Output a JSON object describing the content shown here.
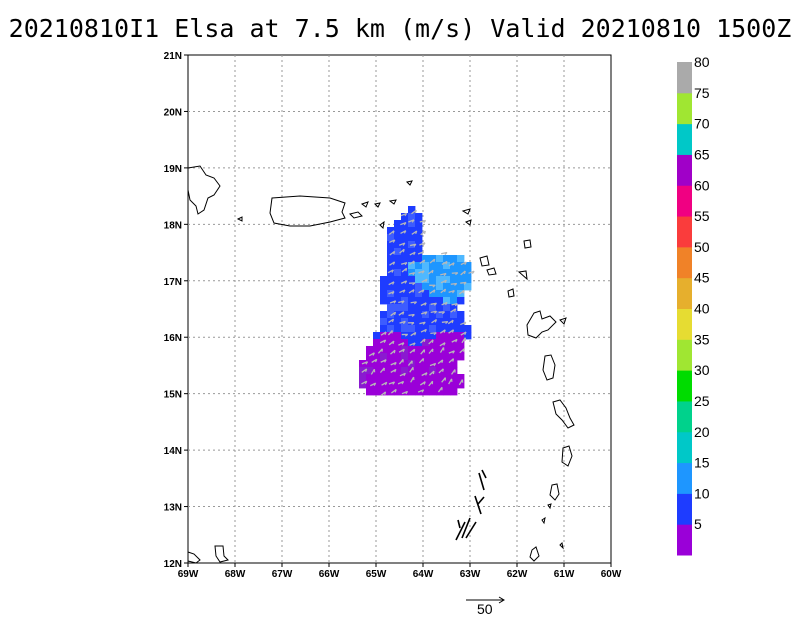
{
  "title": "20210810I1 Elsa at 7.5 km (m/s) Valid 20210810 1500Z",
  "map": {
    "lon_labels": [
      "69W",
      "68W",
      "67W",
      "66W",
      "65W",
      "64W",
      "63W",
      "62W",
      "61W",
      "60W"
    ],
    "lat_labels": [
      "12N",
      "13N",
      "14N",
      "15N",
      "16N",
      "17N",
      "18N",
      "19N",
      "20N",
      "21N"
    ],
    "grid": "dotted"
  },
  "colorbar": {
    "labels": [
      "5",
      "10",
      "15",
      "20",
      "25",
      "30",
      "35",
      "40",
      "45",
      "50",
      "55",
      "60",
      "65",
      "70",
      "75",
      "80"
    ],
    "colors": [
      "#9a00d8",
      "#1e3cff",
      "#1e96ff",
      "#00c8c8",
      "#00d28c",
      "#00dc00",
      "#a0e632",
      "#e6dc32",
      "#e6af2d",
      "#f08228",
      "#fa3c3c",
      "#f00082",
      "#a000c8",
      "#00c8c8",
      "#a0e632",
      "#aaaaaa"
    ]
  },
  "reference_vector": {
    "value": "50"
  }
}
